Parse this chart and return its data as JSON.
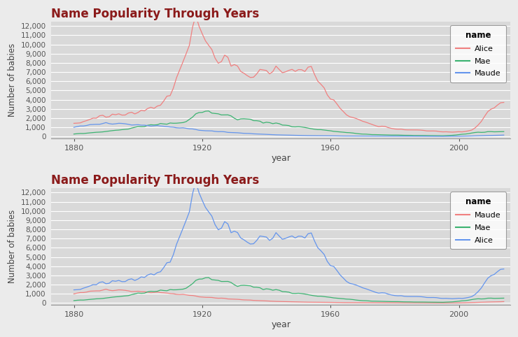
{
  "title": "Name Popularity Through Years",
  "xlabel": "year",
  "ylabel": "Number of babies",
  "title_color": "#8B1A1A",
  "bg_color": "#EBEBEB",
  "plot_bg_color": "#D9D9D9",
  "grid_color": "#FFFFFF",
  "ylim": [
    -200,
    12500
  ],
  "yticks": [
    0,
    1000,
    2000,
    3000,
    4000,
    5000,
    6000,
    7000,
    8000,
    9000,
    10000,
    11000,
    12000
  ],
  "xticks": [
    1880,
    1920,
    1960,
    2000
  ],
  "top_legend": {
    "title": "name",
    "entries": [
      "Alice",
      "Mae",
      "Maude"
    ],
    "colors": [
      "#F08080",
      "#3CB371",
      "#6495ED"
    ]
  },
  "bottom_legend": {
    "title": "name",
    "entries": [
      "Maude",
      "Mae",
      "Alice"
    ],
    "colors": [
      "#F08080",
      "#3CB371",
      "#6495ED"
    ]
  },
  "alice_color_top": "#F08080",
  "mae_color_top": "#3CB371",
  "maude_color_top": "#6495ED",
  "alice_color_bot": "#6495ED",
  "mae_color_bot": "#3CB371",
  "maude_color_bot": "#F08080",
  "line_width": 1.0
}
